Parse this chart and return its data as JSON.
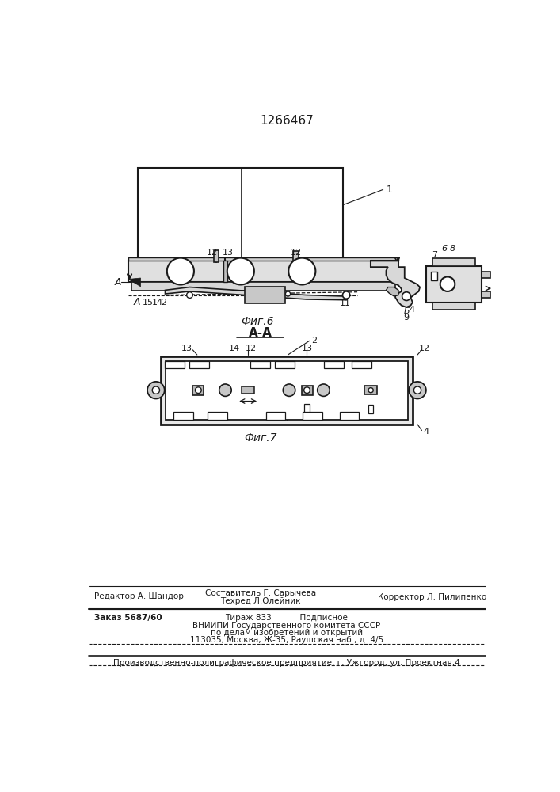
{
  "patent_number": "1266467",
  "background_color": "#ffffff",
  "fig6_label": "Фиг.6",
  "fig7_label": "Фиг.7",
  "section_label": "А-А",
  "footer": {
    "editor": "Редактор А. Шандор",
    "compiler": "Составитель Г. Сарычева",
    "techred": "Техред Л.Олейник",
    "corrector": "Корректор Л. Пилипенко",
    "order": "Заказ 5687/60",
    "tirazh": "Тираж 833",
    "podpisnoe": "Подписное",
    "vniipи": "ВНИИПИ Государственного комитета СССР",
    "po_delam": "по делам изобретений и открытий",
    "address": "113035, Москва, Ж-35, Раушская наб., д. 4/5",
    "factory": "Производственно-полиграфическое предприятие, г. Ужгород, ул. Проектная,4"
  },
  "text_color": "#1a1a1a",
  "line_color": "#1a1a1a"
}
